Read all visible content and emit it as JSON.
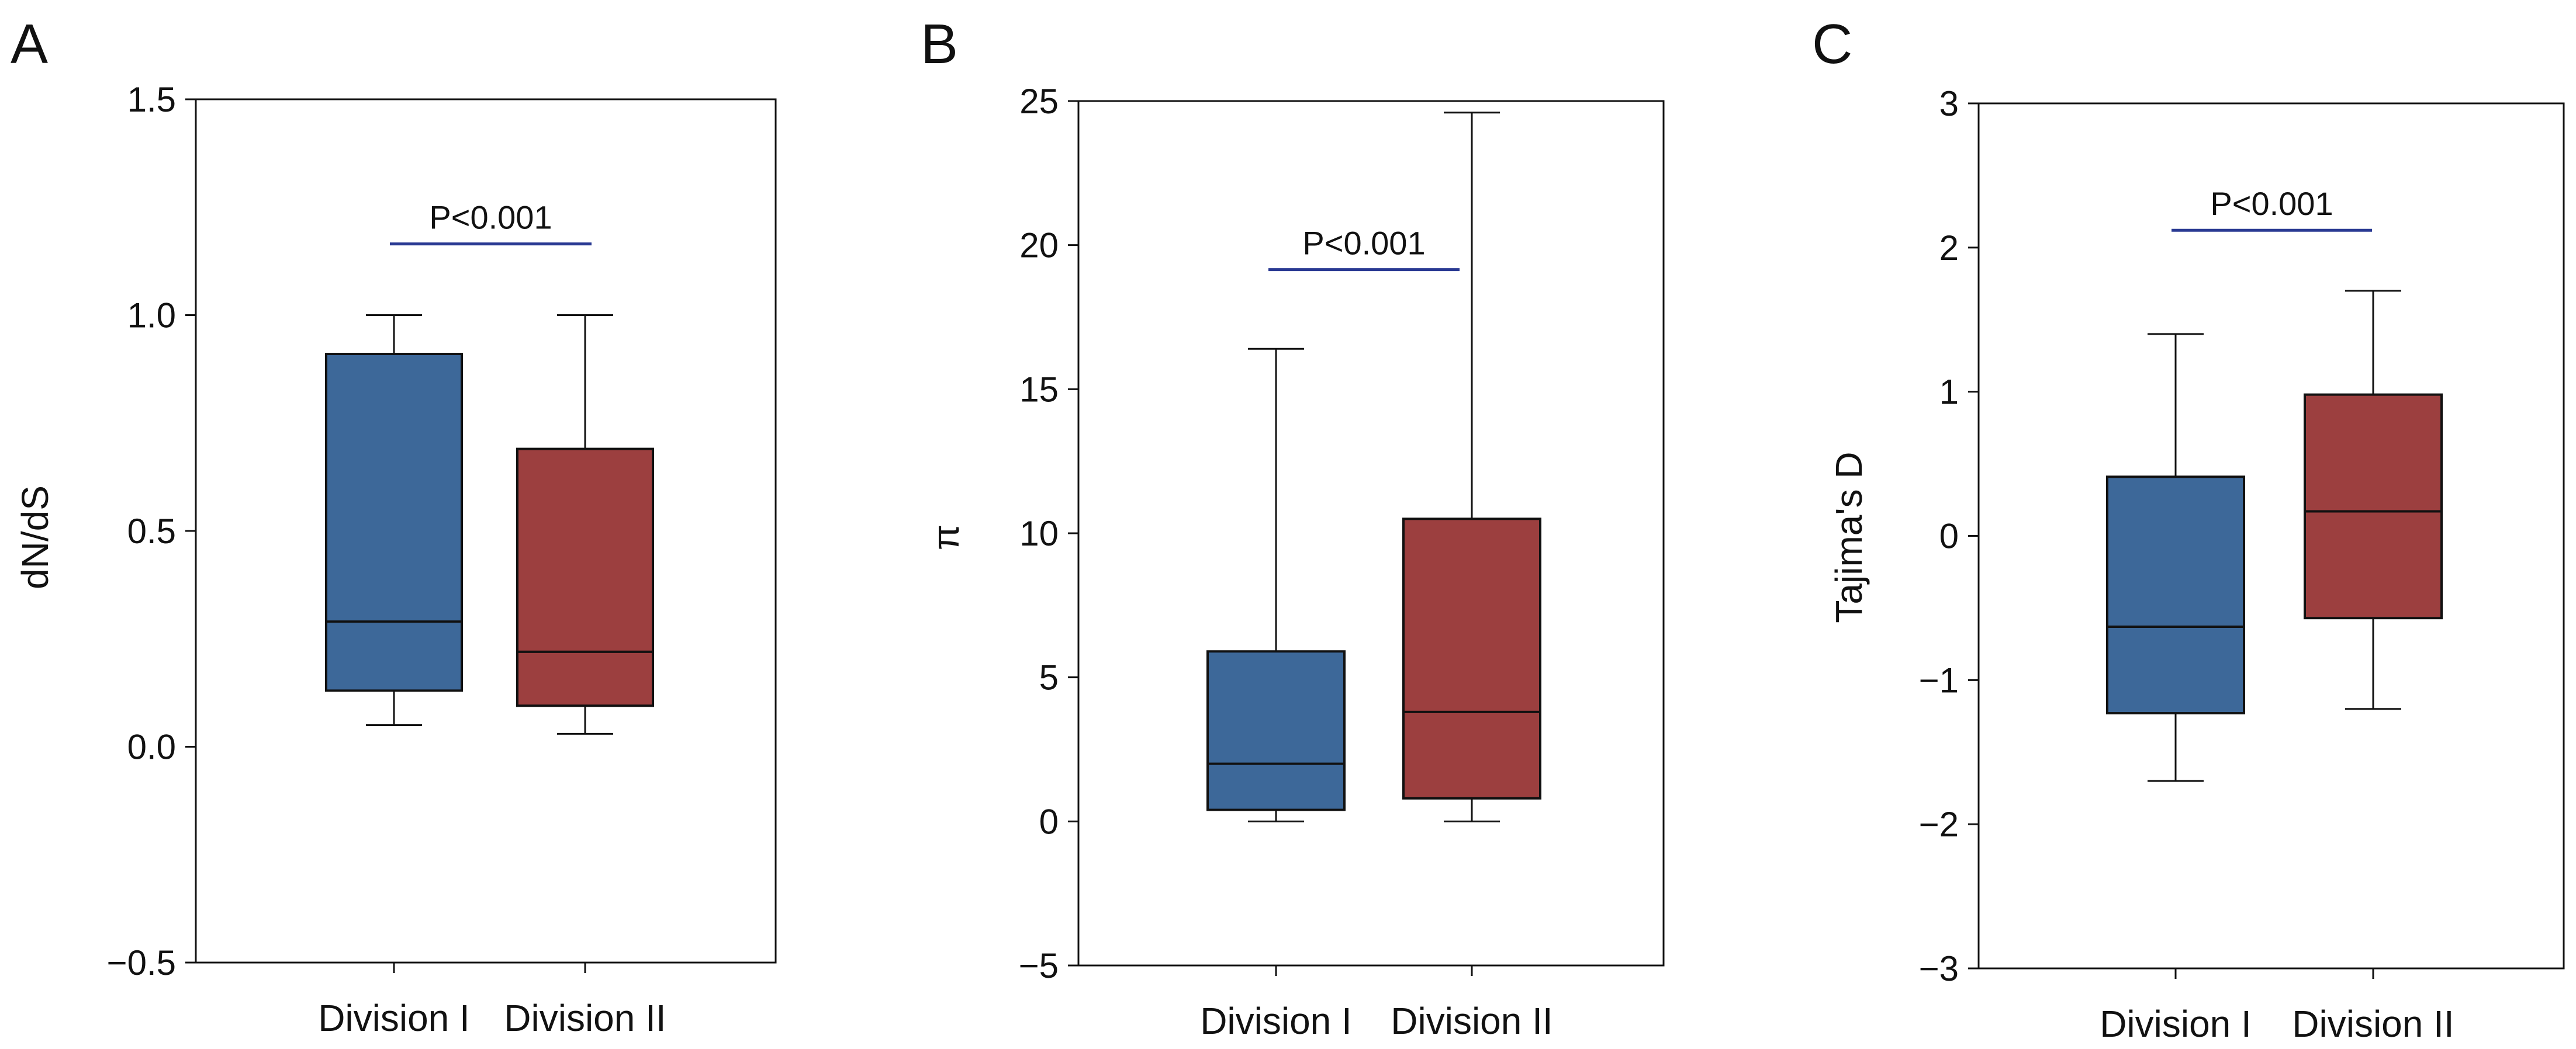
{
  "chart_data": [
    {
      "panel": "A",
      "type": "box",
      "ylabel": "dN/dS",
      "ylim": [
        -0.5,
        1.5
      ],
      "yticks": [
        -0.5,
        0.0,
        0.5,
        1.0,
        1.5
      ],
      "ytick_labels": [
        "−0.5",
        "0.0",
        "0.5",
        "1.0",
        "1.5"
      ],
      "categories": [
        "Division I",
        "Division II"
      ],
      "series": [
        {
          "name": "Division I",
          "color": "#3d6899",
          "whisker_low": 0.05,
          "q1": 0.13,
          "median": 0.29,
          "q3": 0.91,
          "whisker_high": 1.0
        },
        {
          "name": "Division II",
          "color": "#9c3f3f",
          "whisker_low": 0.03,
          "q1": 0.095,
          "median": 0.22,
          "q3": 0.69,
          "whisker_high": 1.0
        }
      ],
      "annotation": {
        "text": "P<0.001",
        "y": 1.165,
        "color": "#2a3a93"
      }
    },
    {
      "panel": "B",
      "type": "box",
      "ylabel": "π",
      "ylim": [
        -5,
        25
      ],
      "yticks": [
        -5,
        0,
        5,
        10,
        15,
        20,
        25
      ],
      "ytick_labels": [
        "−5",
        "0",
        "5",
        "10",
        "15",
        "20",
        "25"
      ],
      "categories": [
        "Division I",
        "Division II"
      ],
      "series": [
        {
          "name": "Division I",
          "color": "#3d6899",
          "whisker_low": 0.0,
          "q1": 0.4,
          "median": 2.0,
          "q3": 5.9,
          "whisker_high": 16.4
        },
        {
          "name": "Division II",
          "color": "#9c3f3f",
          "whisker_low": 0.0,
          "q1": 0.8,
          "median": 3.8,
          "q3": 10.5,
          "whisker_high": 24.6
        }
      ],
      "annotation": {
        "text": "P<0.001",
        "y": 19.15,
        "color": "#2a3a93"
      }
    },
    {
      "panel": "C",
      "type": "box",
      "ylabel": "Tajima's D",
      "ylim": [
        -3,
        3
      ],
      "yticks": [
        -3,
        -2,
        -1,
        0,
        1,
        2,
        3
      ],
      "ytick_labels": [
        "−3",
        "−2",
        "−1",
        "0",
        "1",
        "2",
        "3"
      ],
      "categories": [
        "Division I",
        "Division II"
      ],
      "series": [
        {
          "name": "Division I",
          "color": "#3d6899",
          "whisker_low": -1.7,
          "q1": -1.23,
          "median": -0.63,
          "q3": 0.41,
          "whisker_high": 1.4
        },
        {
          "name": "Division II",
          "color": "#9c3f3f",
          "whisker_low": -1.2,
          "q1": -0.57,
          "median": 0.17,
          "q3": 0.98,
          "whisker_high": 1.7
        }
      ],
      "annotation": {
        "text": "P<0.001",
        "y": 2.12,
        "color": "#2a3a93"
      }
    }
  ]
}
